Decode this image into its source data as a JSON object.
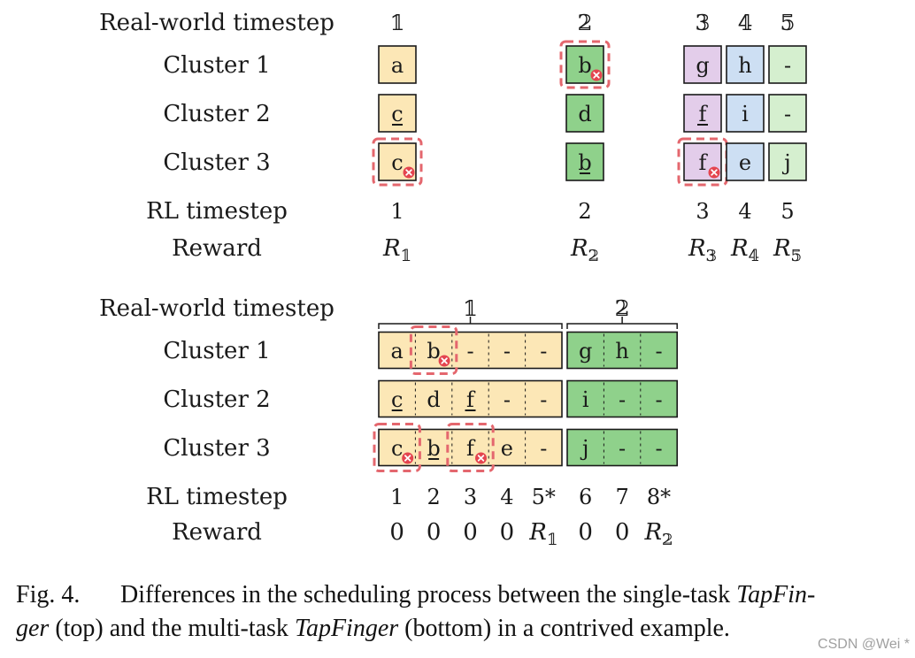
{
  "colors": {
    "yellow": "#fce7b6",
    "green": "#8fd18b",
    "purple": "#e3cdea",
    "blue": "#cddff3",
    "light_green": "#d5efcf",
    "failure": "#e4444f",
    "dash": "#e4676e"
  },
  "row_labels": {
    "real_world_timestep": "Real-world timestep",
    "cluster_1": "Cluster 1",
    "cluster_2": "Cluster 2",
    "cluster_3": "Cluster 3",
    "rl_timestep": "RL timestep",
    "reward": "Reward"
  },
  "top": {
    "real_world_timesteps": [
      "𝟙",
      "𝟚",
      "𝟛",
      "𝟜",
      "𝟝"
    ],
    "columns": [
      {
        "cells": [
          {
            "text": "a",
            "color": "yellow",
            "underline": false,
            "failed": false
          },
          {
            "text": "c",
            "color": "yellow",
            "underline": true,
            "failed": false
          },
          {
            "text": "c",
            "color": "yellow",
            "underline": false,
            "failed": true
          }
        ]
      },
      {
        "cells": [
          {
            "text": "b",
            "color": "green",
            "underline": false,
            "failed": true
          },
          {
            "text": "d",
            "color": "green",
            "underline": false,
            "failed": false
          },
          {
            "text": "b",
            "color": "green",
            "underline": true,
            "failed": false
          }
        ]
      },
      {
        "cells": [
          {
            "text": "g",
            "color": "purple",
            "underline": false,
            "failed": false
          },
          {
            "text": "f",
            "color": "purple",
            "underline": true,
            "failed": false
          },
          {
            "text": "f",
            "color": "purple",
            "underline": false,
            "failed": true
          }
        ]
      },
      {
        "cells": [
          {
            "text": "h",
            "color": "blue",
            "underline": false,
            "failed": false
          },
          {
            "text": "i",
            "color": "blue",
            "underline": false,
            "failed": false
          },
          {
            "text": "e",
            "color": "blue",
            "underline": false,
            "failed": false
          }
        ]
      },
      {
        "cells": [
          {
            "text": "-",
            "color": "light_green",
            "underline": false,
            "failed": false
          },
          {
            "text": "-",
            "color": "light_green",
            "underline": false,
            "failed": false
          },
          {
            "text": "j",
            "color": "light_green",
            "underline": false,
            "failed": false
          }
        ]
      }
    ],
    "rl_timesteps": [
      "1",
      "2",
      "3",
      "4",
      "5"
    ],
    "rewards": [
      {
        "base": "R",
        "sub": "𝟙"
      },
      {
        "base": "R",
        "sub": "𝟚"
      },
      {
        "base": "R",
        "sub": "𝟛"
      },
      {
        "base": "R",
        "sub": "𝟜"
      },
      {
        "base": "R",
        "sub": "𝟝"
      }
    ]
  },
  "bottom": {
    "groups": [
      {
        "label": "𝟙",
        "color": "yellow",
        "rows": [
          [
            {
              "text": "a"
            },
            {
              "text": "b",
              "failed": true
            },
            {
              "text": "-"
            },
            {
              "text": "-"
            },
            {
              "text": "-"
            }
          ],
          [
            {
              "text": "c",
              "underline": true
            },
            {
              "text": "d"
            },
            {
              "text": "f",
              "underline": true
            },
            {
              "text": "-"
            },
            {
              "text": "-"
            }
          ],
          [
            {
              "text": "c",
              "failed": true
            },
            {
              "text": "b",
              "underline": true
            },
            {
              "text": "f",
              "failed": true
            },
            {
              "text": "e"
            },
            {
              "text": "-"
            }
          ]
        ]
      },
      {
        "label": "𝟚",
        "color": "green",
        "rows": [
          [
            {
              "text": "g"
            },
            {
              "text": "h"
            },
            {
              "text": "-"
            }
          ],
          [
            {
              "text": "i"
            },
            {
              "text": "-"
            },
            {
              "text": "-"
            }
          ],
          [
            {
              "text": "j"
            },
            {
              "text": "-"
            },
            {
              "text": "-"
            }
          ]
        ]
      }
    ],
    "rl_timesteps": [
      "1",
      "2",
      "3",
      "4",
      "5*",
      "6",
      "7",
      "8*"
    ],
    "rewards": [
      {
        "base": "0"
      },
      {
        "base": "0"
      },
      {
        "base": "0"
      },
      {
        "base": "0"
      },
      {
        "base": "R",
        "sub": "𝟙"
      },
      {
        "base": "0"
      },
      {
        "base": "0"
      },
      {
        "base": "R",
        "sub": "𝟚"
      }
    ]
  },
  "caption": {
    "label": "Fig. 4.",
    "text_1": "Differences in the scheduling process between the single-task ",
    "italic_1": "TapFin-",
    "italic_2": "ger",
    "text_2": " (top) and the multi-task ",
    "italic_3": "TapFinger",
    "text_3": " (bottom) in a contrived example."
  },
  "watermark": "CSDN @Wei *"
}
